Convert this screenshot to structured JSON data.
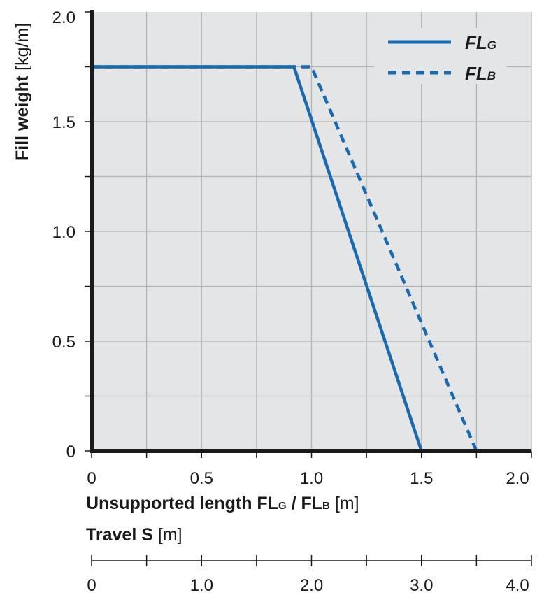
{
  "chart_data": {
    "type": "line",
    "xlabel_bold": "Unsupported length FL",
    "xlabel_sub1": "G",
    "xlabel_sep": " / FL",
    "xlabel_sub2": "B",
    "xlabel_unit": " [m]",
    "ylabel_bold": "Fill weight",
    "ylabel_unit": " [kg/m]",
    "xlim": [
      0,
      2.0
    ],
    "ylim": [
      0,
      2.0
    ],
    "xticks": [
      "0",
      "0.5",
      "1.0",
      "1.5",
      "2.0"
    ],
    "yticks": [
      "0",
      "0.5",
      "1.0",
      "1.5",
      "2.0"
    ],
    "grid": true,
    "legend_position": "top-right",
    "series": [
      {
        "name": "FL",
        "sub": "G",
        "style": "solid",
        "color": "#1a6aad",
        "x": [
          0,
          0.92,
          1.5
        ],
        "y": [
          1.75,
          1.75,
          0
        ]
      },
      {
        "name": "FL",
        "sub": "B",
        "style": "dashed",
        "color": "#1a6aad",
        "x": [
          0,
          1.0,
          1.75
        ],
        "y": [
          1.75,
          1.75,
          0
        ]
      }
    ],
    "secondary_axis": {
      "label_bold": "Travel S",
      "label_unit": " [m]",
      "ticks": [
        "0",
        "1.0",
        "2.0",
        "3.0",
        "4.0"
      ]
    }
  }
}
